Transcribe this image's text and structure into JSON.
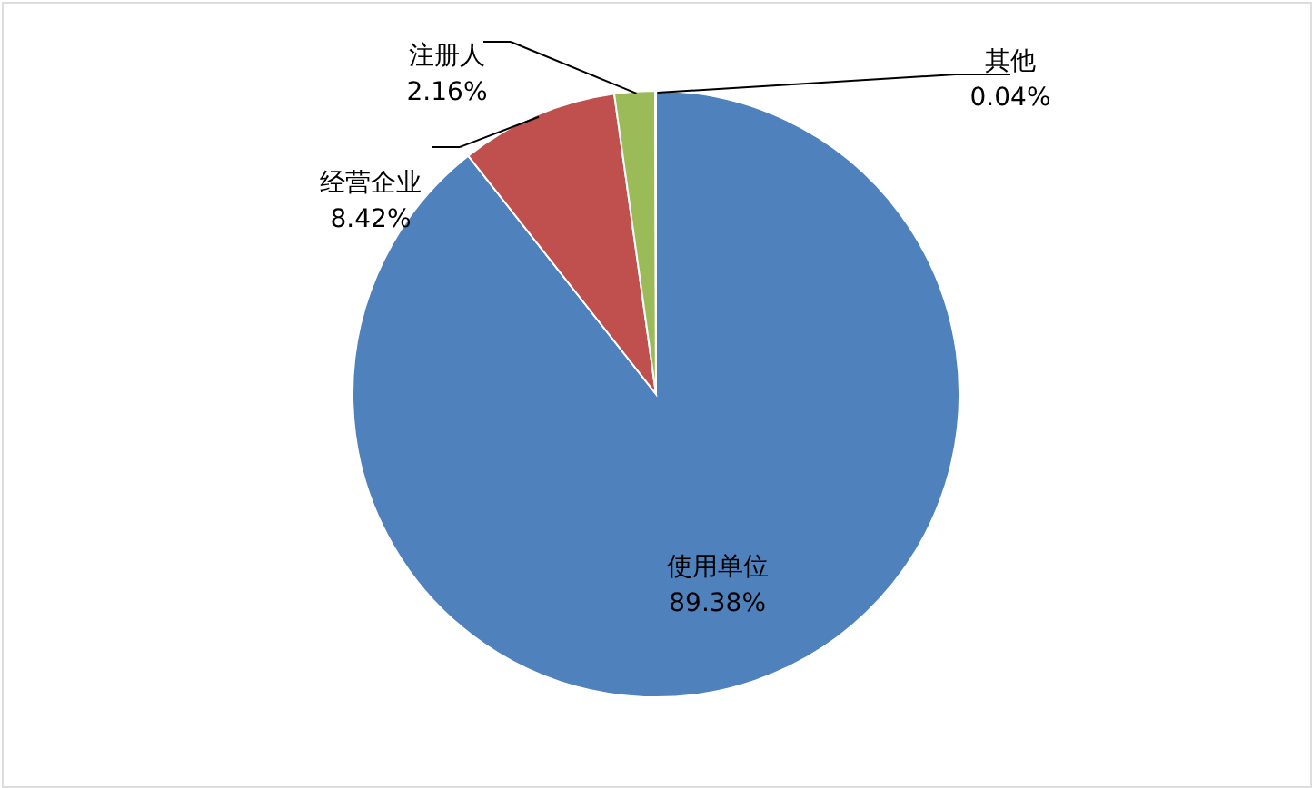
{
  "chart_data": {
    "type": "pie",
    "categories": [
      "使用单位",
      "经营企业",
      "注册人",
      "其他"
    ],
    "values": [
      89.38,
      8.42,
      2.16,
      0.04
    ],
    "colors": [
      "#4f81bd",
      "#c0504d",
      "#9bbb59",
      "#8064a2"
    ],
    "value_labels": [
      "89.38%",
      "8.42%",
      "2.16%",
      "0.04%"
    ],
    "legend": false
  }
}
